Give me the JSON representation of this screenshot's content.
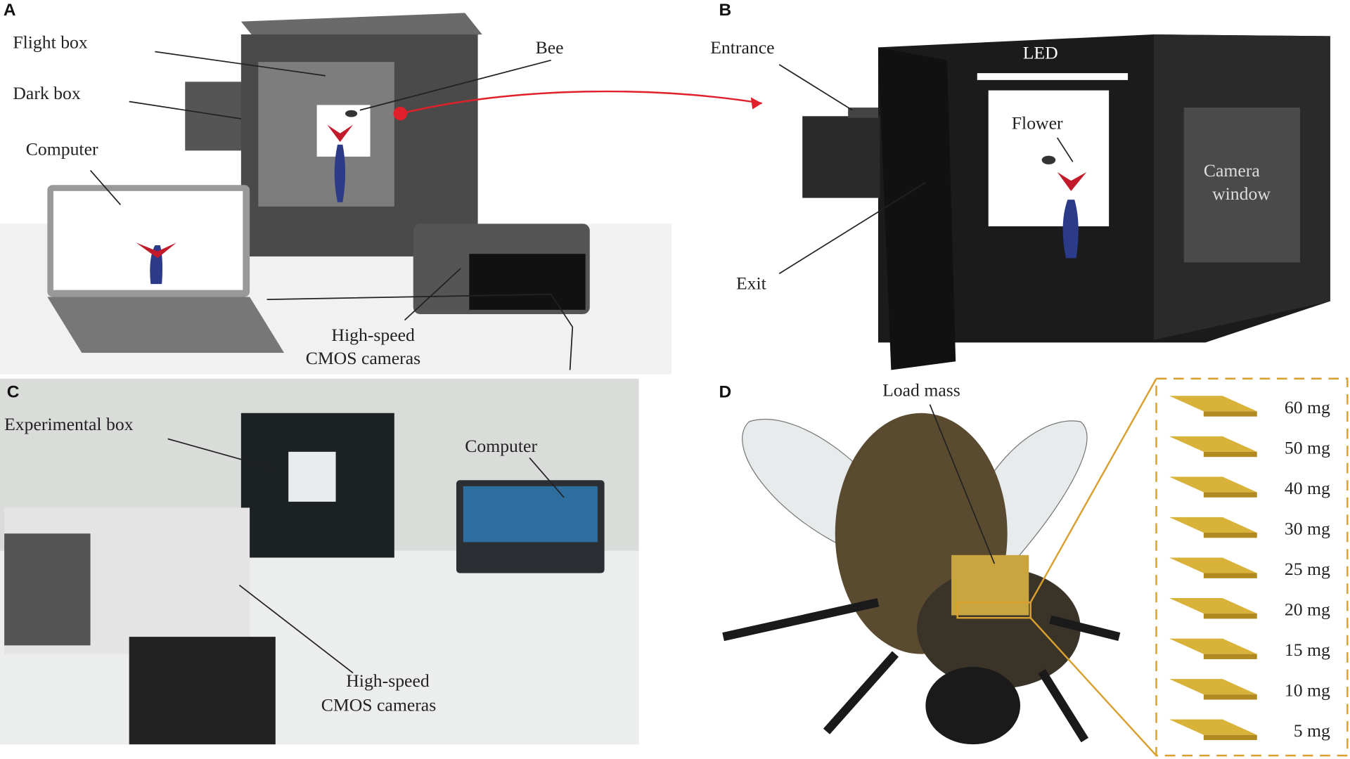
{
  "panels": {
    "a": {
      "letter": "A",
      "labels": {
        "flight_box": "Flight box",
        "dark_box": "Dark box",
        "bee": "Bee",
        "computer": "Computer",
        "camera_line1": "High-speed",
        "camera_line2": "CMOS cameras"
      }
    },
    "b": {
      "letter": "B",
      "labels": {
        "entrance": "Entrance",
        "led": "LED",
        "flower": "Flower",
        "camera_window_line1": "Camera",
        "camera_window_line2": "window",
        "exit": "Exit"
      }
    },
    "c": {
      "letter": "C",
      "labels": {
        "experimental_box": "Experimental box",
        "computer": "Computer",
        "camera_line1": "High-speed",
        "camera_line2": "CMOS cameras"
      }
    },
    "d": {
      "letter": "D",
      "labels": {
        "load_mass": "Load mass"
      },
      "masses": [
        "60 mg",
        "50 mg",
        "40 mg",
        "30 mg",
        "25 mg",
        "20 mg",
        "15 mg",
        "10 mg",
        "5 mg"
      ]
    }
  },
  "colors": {
    "arrow": "#e0202a",
    "gold": "#d9b23a",
    "dash": "#d9a030",
    "vase": "#2c3a8a"
  }
}
